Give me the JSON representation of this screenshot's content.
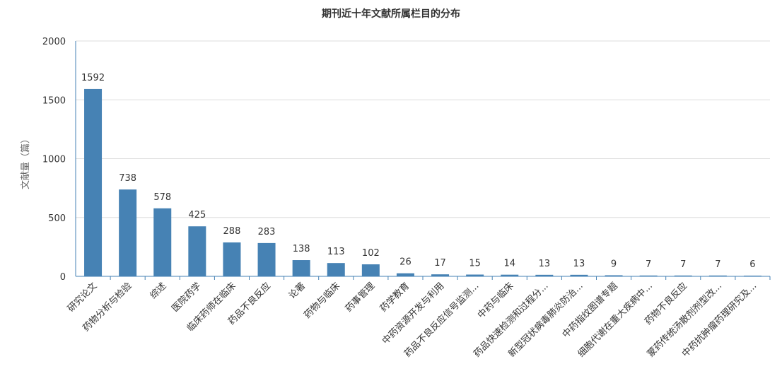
{
  "chart_data": {
    "type": "bar",
    "title": "期刊近十年文献所属栏目的分布",
    "ylabel": "文献量（篇）",
    "xlabel": "",
    "ylim": [
      0,
      2000
    ],
    "yticks": [
      0,
      500,
      1000,
      1500,
      2000
    ],
    "grid": true,
    "bar_color": "#4682b4",
    "categories": [
      "研究论文",
      "药物分析与检验",
      "综述",
      "医院药学",
      "临床药师在临床",
      "药品不良反应",
      "论著",
      "药物与临床",
      "药事管理",
      "药学教育",
      "中药资源开发与利用",
      "药品不良反应信号监测...",
      "中药与临床",
      "药品快速检测和过程分...",
      "新型冠状病毒肺炎防治...",
      "中药指纹图谱专题",
      "细胞代谢在重大疾病中...",
      "药物不良反应",
      "蒙药传统汤散剂剂型改...",
      "中药抗肿瘤药理研究及..."
    ],
    "values": [
      1592,
      738,
      578,
      425,
      288,
      283,
      138,
      113,
      102,
      26,
      17,
      15,
      14,
      13,
      13,
      9,
      7,
      7,
      7,
      6
    ]
  }
}
